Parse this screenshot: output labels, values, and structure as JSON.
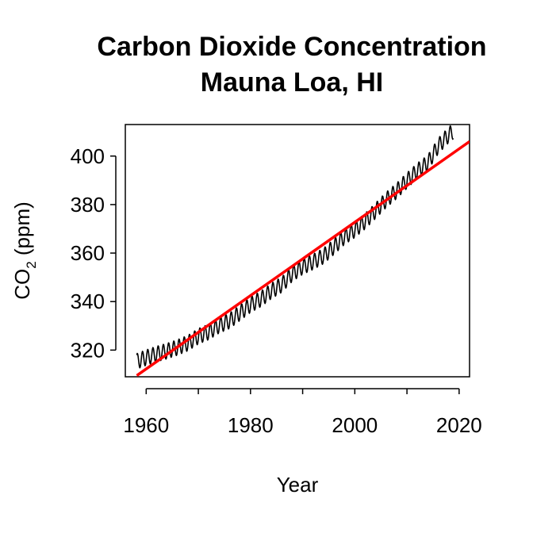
{
  "chart_data": {
    "type": "line",
    "title": "Carbon Dioxide Concentration",
    "subtitle": "Mauna Loa, HI",
    "xlabel": "Year",
    "ylabel": {
      "main": "CO",
      "subscript": "2",
      "suffix": " (ppm)"
    },
    "xlim": [
      1956,
      2022
    ],
    "ylim": [
      309,
      413
    ],
    "x_ticks": [
      1960,
      1980,
      2000,
      2020
    ],
    "x_minor_ticks": [
      1960,
      1970,
      1980,
      1990,
      2000,
      2010,
      2020
    ],
    "y_ticks": [
      320,
      340,
      360,
      380,
      400
    ],
    "grid": false,
    "legend": "none",
    "series": [
      {
        "kind": "monthly_observations",
        "color": "#000000",
        "x_start": 1958.2,
        "x_end": 2018.9,
        "points": [
          [
            1958,
            315.2
          ],
          [
            1960,
            316.9
          ],
          [
            1962,
            318.4
          ],
          [
            1964,
            319.6
          ],
          [
            1966,
            321.1
          ],
          [
            1968,
            322.9
          ],
          [
            1970,
            325.7
          ],
          [
            1972,
            327.5
          ],
          [
            1974,
            330.2
          ],
          [
            1976,
            332.1
          ],
          [
            1978,
            335.4
          ],
          [
            1980,
            338.7
          ],
          [
            1982,
            341.1
          ],
          [
            1984,
            344.4
          ],
          [
            1986,
            347.0
          ],
          [
            1988,
            351.5
          ],
          [
            1990,
            354.4
          ],
          [
            1992,
            356.4
          ],
          [
            1994,
            358.8
          ],
          [
            1996,
            362.6
          ],
          [
            1998,
            366.7
          ],
          [
            2000,
            369.6
          ],
          [
            2002,
            373.2
          ],
          [
            2004,
            377.5
          ],
          [
            2006,
            381.9
          ],
          [
            2008,
            385.6
          ],
          [
            2010,
            389.9
          ],
          [
            2012,
            393.9
          ],
          [
            2014,
            397.2
          ],
          [
            2016,
            404.2
          ],
          [
            2018,
            408.7
          ],
          [
            2019,
            410.5
          ]
        ],
        "seasonal_amplitude_ppm": 3.2
      },
      {
        "kind": "linear_fit",
        "color": "#ff0000",
        "points": [
          [
            1958.2,
            309.5
          ],
          [
            2022,
            406.0
          ]
        ]
      }
    ]
  }
}
